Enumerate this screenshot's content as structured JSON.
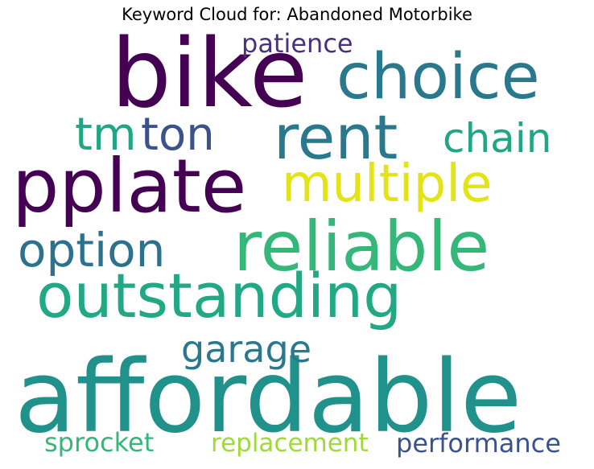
{
  "chart_data": {
    "type": "wordcloud",
    "title": "Keyword Cloud for: Abandoned Motorbike",
    "words": [
      {
        "text": "bike",
        "weight": 1.0,
        "color": "#440154"
      },
      {
        "text": "affordable",
        "weight": 0.96,
        "color": "#21918c"
      },
      {
        "text": "choice",
        "weight": 0.72,
        "color": "#2a788e"
      },
      {
        "text": "pplate",
        "weight": 0.7,
        "color": "#440154"
      },
      {
        "text": "reliable",
        "weight": 0.68,
        "color": "#35b779"
      },
      {
        "text": "outstanding",
        "weight": 0.66,
        "color": "#22a884"
      },
      {
        "text": "rent",
        "weight": 0.64,
        "color": "#2a788e"
      },
      {
        "text": "multiple",
        "weight": 0.5,
        "color": "#e3e418"
      },
      {
        "text": "option",
        "weight": 0.47,
        "color": "#2c728e"
      },
      {
        "text": "tm",
        "weight": 0.43,
        "color": "#21a585"
      },
      {
        "text": "ton",
        "weight": 0.43,
        "color": "#3b528b"
      },
      {
        "text": "chain",
        "weight": 0.39,
        "color": "#21a585"
      },
      {
        "text": "garage",
        "weight": 0.37,
        "color": "#2a788e"
      },
      {
        "text": "patience",
        "weight": 0.28,
        "color": "#46327e"
      },
      {
        "text": "performance",
        "weight": 0.28,
        "color": "#3b528b"
      },
      {
        "text": "sprocket",
        "weight": 0.27,
        "color": "#35b779"
      },
      {
        "text": "replacement",
        "weight": 0.27,
        "color": "#a0da39"
      }
    ]
  }
}
